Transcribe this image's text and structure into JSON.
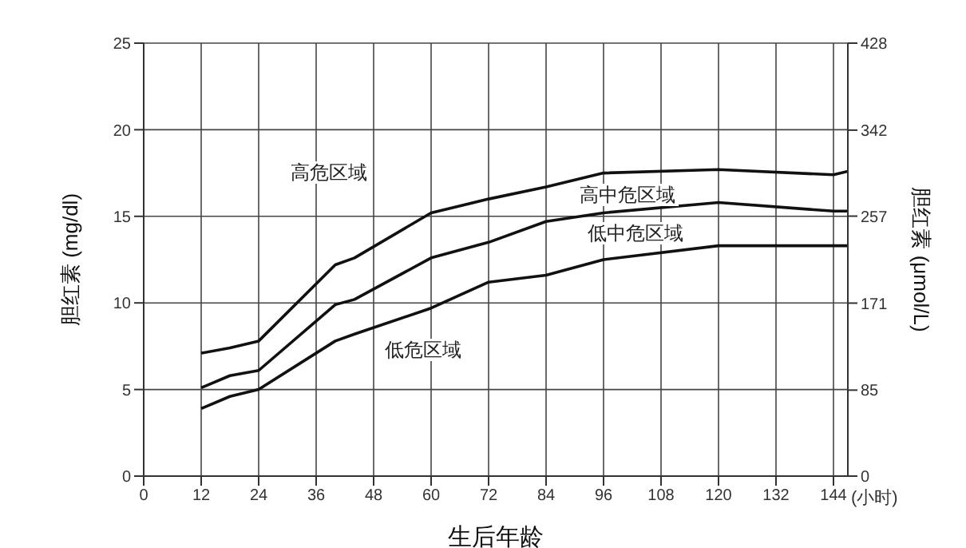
{
  "chart_data": {
    "type": "line",
    "xlabel": "生后年龄",
    "ylabel": "胆红素 (mg/dl)",
    "y2label": "胆红素 (μmol/L)",
    "xlim": [
      0,
      147
    ],
    "xticks": [
      0,
      12,
      24,
      36,
      48,
      60,
      72,
      84,
      96,
      108,
      120,
      132,
      144
    ],
    "ylim": [
      0,
      25
    ],
    "yticks": [
      0,
      5,
      10,
      15,
      20,
      25
    ],
    "y2lim": [
      0,
      428
    ],
    "y2ticks": [
      0,
      85,
      171,
      257,
      342,
      428
    ],
    "grid": true,
    "marker": "none",
    "line_style": "solid",
    "series": [
      {
        "color": "#111111",
        "x": [
          12,
          18,
          24,
          40,
          44,
          60,
          72,
          84,
          96,
          120,
          144,
          147
        ],
        "values": [
          7.1,
          7.4,
          7.8,
          12.2,
          12.6,
          15.2,
          16.0,
          16.7,
          17.5,
          17.7,
          17.4,
          17.6
        ]
      },
      {
        "color": "#111111",
        "x": [
          12,
          18,
          24,
          40,
          44,
          60,
          72,
          84,
          96,
          120,
          144,
          147
        ],
        "values": [
          5.1,
          5.8,
          6.1,
          9.9,
          10.2,
          12.6,
          13.5,
          14.7,
          15.2,
          15.8,
          15.3,
          15.3
        ]
      },
      {
        "color": "#111111",
        "x": [
          12,
          18,
          24,
          40,
          44,
          60,
          72,
          84,
          96,
          120,
          144,
          147
        ],
        "values": [
          3.9,
          4.6,
          5.0,
          7.8,
          8.2,
          9.7,
          11.2,
          11.6,
          12.5,
          13.3,
          13.3,
          13.3
        ]
      }
    ],
    "annotations": [
      "高危区域",
      "高中危区域",
      "低中危区域",
      "低危区域",
      "(小时)"
    ]
  }
}
